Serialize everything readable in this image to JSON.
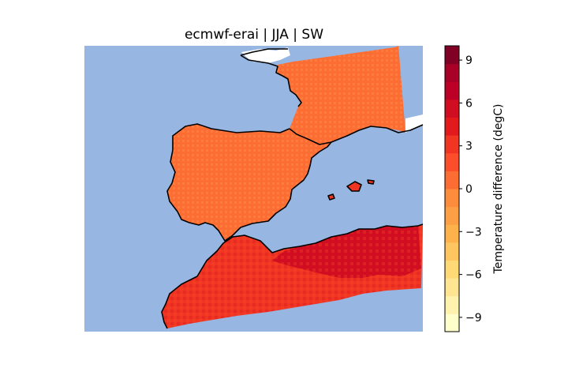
{
  "figure": {
    "title": "ecmwf-erai | JJA | SW"
  },
  "map": {
    "ocean_color": "#97b6e1",
    "land_outside_data_color": "#ffffff",
    "coastline_color": "#000000",
    "regions": [
      {
        "name": "France",
        "temperature_difference": 1.0
      },
      {
        "name": "Iberian Peninsula",
        "temperature_difference": 1.0
      },
      {
        "name": "Balearic Islands",
        "temperature_difference": 3.0
      },
      {
        "name": "Morocco",
        "temperature_difference": 3.5
      },
      {
        "name": "Algeria",
        "temperature_difference": 5.0
      }
    ]
  },
  "colorbar": {
    "label": "Temperature difference (degC)",
    "min": -10,
    "max": 10,
    "step": 1,
    "ticks": [
      "9",
      "6",
      "3",
      "0",
      "−3",
      "−6",
      "−9"
    ],
    "tick_values": [
      9,
      6,
      3,
      0,
      -3,
      -6,
      -9
    ],
    "colors": [
      "#ffffcc",
      "#fff2ae",
      "#ffe591",
      "#fed976",
      "#fec561",
      "#feb24c",
      "#fd9f44",
      "#fd8d3c",
      "#fc6d33",
      "#fc4e2a",
      "#f03523",
      "#e31a1c",
      "#d00d21",
      "#bd0026",
      "#a80026",
      "#800026"
    ]
  }
}
